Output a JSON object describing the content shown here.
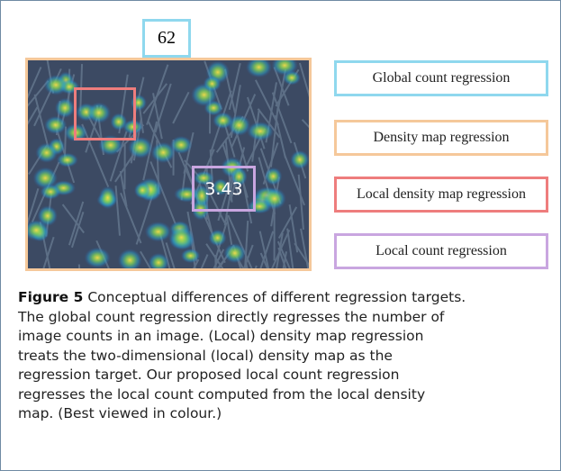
{
  "figure": {
    "global_count": "62",
    "local_count": "3.43",
    "legend": [
      "Global count regression",
      "Density map regression",
      "Local density map regression",
      "Local count regression"
    ],
    "caption": {
      "label": "Figure 5",
      "lines": [
        "Conceptual differences of different regression targets.",
        "The global count regression directly regresses the number of",
        "image counts in an image. (Local) density map regression",
        "treats the two-dimensional (local) density map as the",
        "regression target. Our proposed local count regression",
        "regresses the local count computed from the local density",
        "map. (Best viewed in colour.)"
      ]
    }
  }
}
